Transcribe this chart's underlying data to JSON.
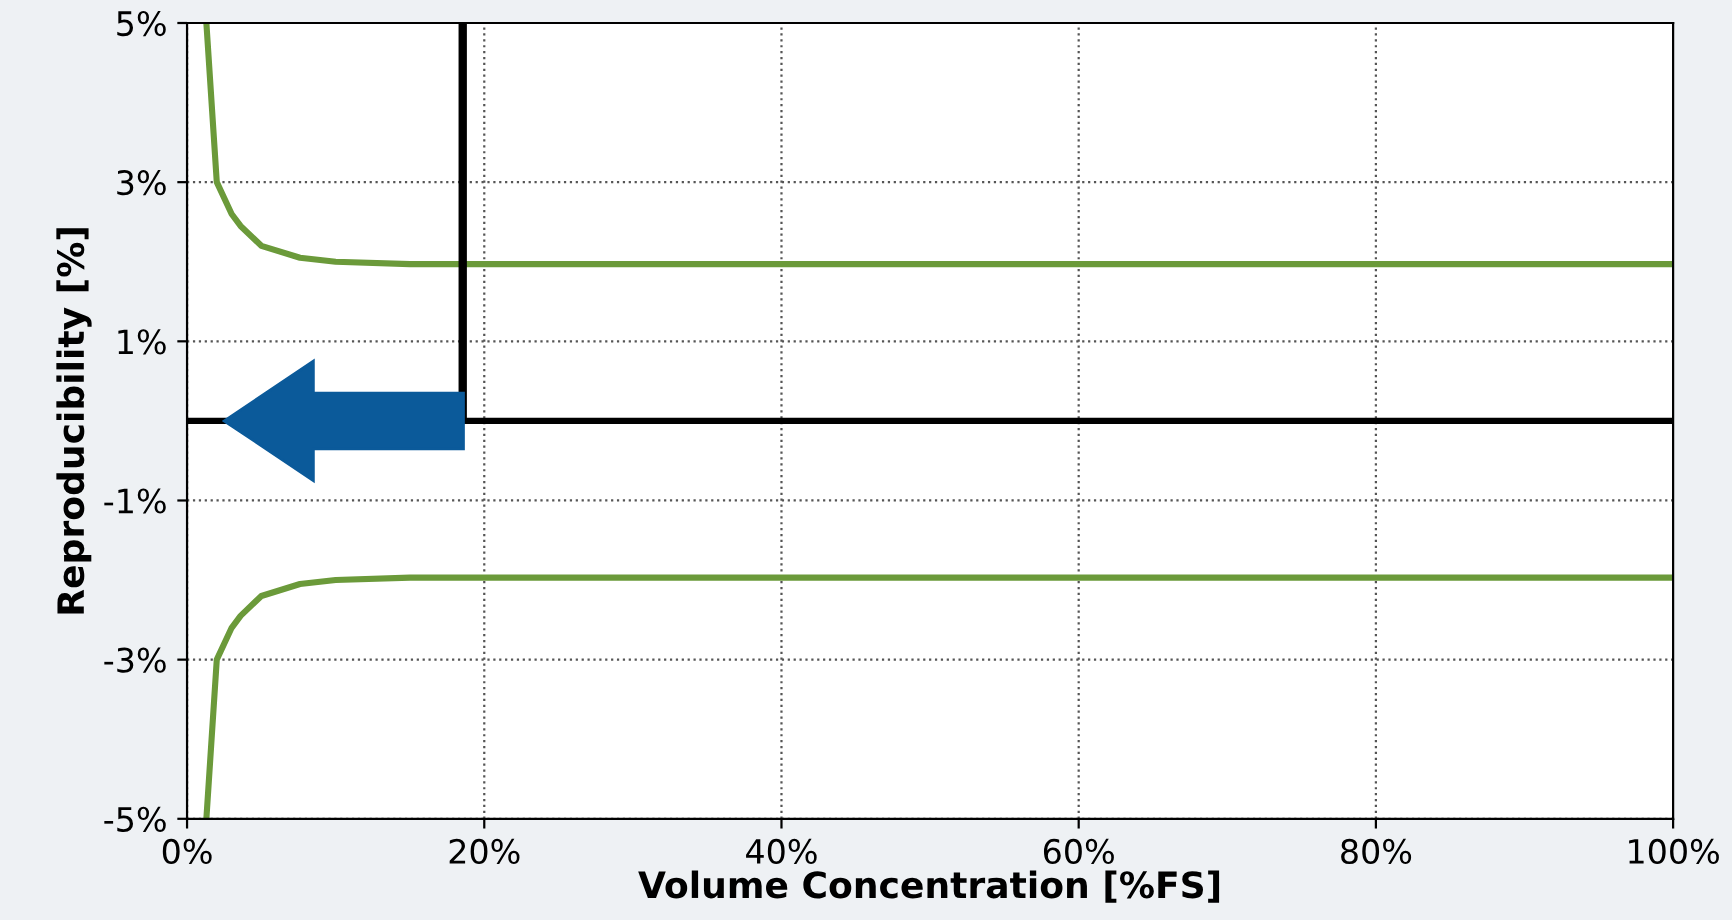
{
  "chart_data": {
    "type": "line",
    "xlabel": "Volume Concentration [%FS]",
    "ylabel": "Reproducibility [%]",
    "xlim": [
      0,
      100
    ],
    "xticks": [
      {
        "value": 0,
        "label": "0%"
      },
      {
        "value": 20,
        "label": "20%"
      },
      {
        "value": 40,
        "label": "40%"
      },
      {
        "value": 60,
        "label": "60%"
      },
      {
        "value": 80,
        "label": "80%"
      },
      {
        "value": 100,
        "label": "100%"
      }
    ],
    "ylim": [
      -5,
      5
    ],
    "yticks": [
      {
        "value": -5,
        "label": "-5%"
      },
      {
        "value": -3,
        "label": "-3%"
      },
      {
        "value": -1,
        "label": "-1%"
      },
      {
        "value": 1,
        "label": "1%"
      },
      {
        "value": 3,
        "label": "3%"
      },
      {
        "value": 5,
        "label": "5%"
      }
    ],
    "grid": true,
    "line_style": "solid",
    "marker": "none",
    "series": [
      {
        "color": "#6b9a3a",
        "x": [
          1.3,
          2,
          3,
          3.6,
          5,
          7.6,
          10,
          15,
          20,
          100
        ],
        "values": [
          5,
          3.0,
          2.6,
          2.45,
          2.2,
          2.05,
          2.0,
          1.97,
          1.97,
          1.97
        ]
      },
      {
        "color": "#6b9a3a",
        "x": [
          1.3,
          2,
          3,
          3.6,
          5,
          7.6,
          10,
          15,
          20,
          100
        ],
        "values": [
          -5,
          -3.0,
          -2.6,
          -2.45,
          -2.2,
          -2.05,
          -2.0,
          -1.97,
          -1.97,
          -1.97
        ]
      }
    ],
    "ref_lines": [
      {
        "axis": "y",
        "value": 0,
        "color": "#000000"
      }
    ]
  }
}
